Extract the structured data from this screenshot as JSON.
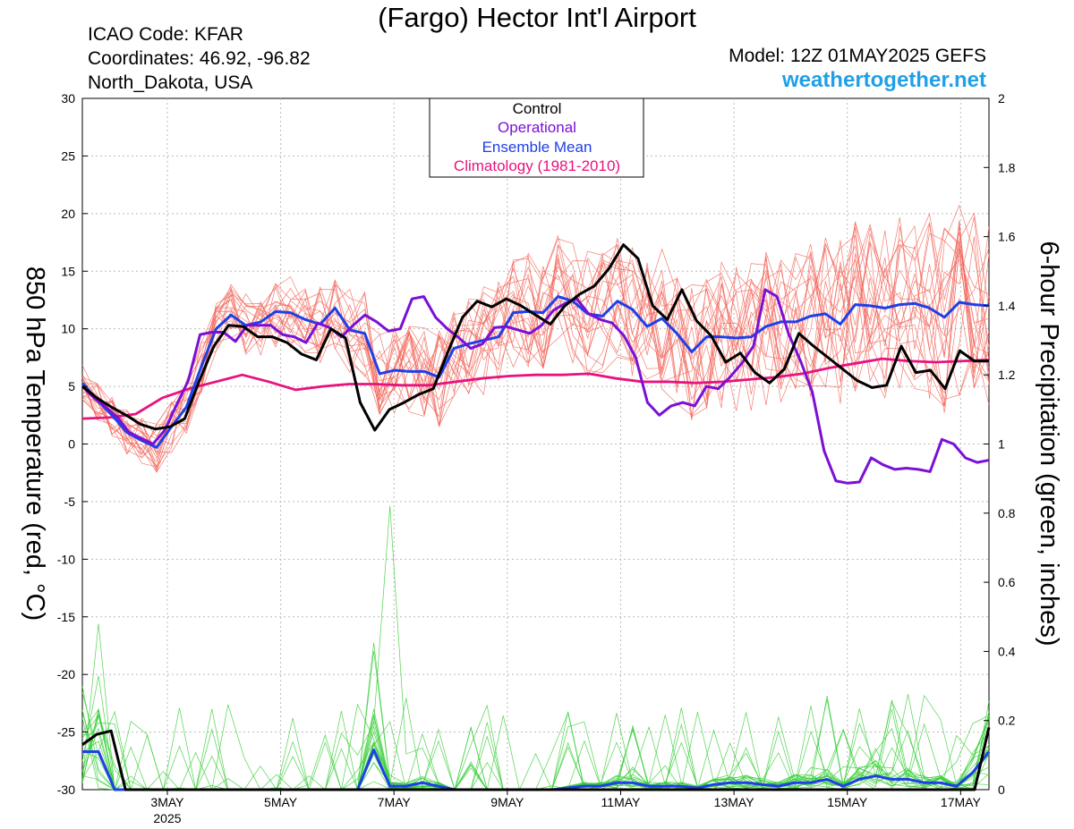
{
  "header": {
    "title": "(Fargo) Hector Int'l Airport",
    "icao": "ICAO Code: KFAR",
    "coords": "Coordinates: 46.92, -96.82",
    "region": "North_Dakota, USA",
    "model": "Model: 12Z 01MAY2025 GEFS",
    "site": "weathertogether.net"
  },
  "colors": {
    "members": "#f2675c",
    "precip": "#33cc33",
    "control": "#000000",
    "operational": "#7a10d6",
    "mean": "#1f3fe8",
    "climo": "#e8127f",
    "site": "#1fa0e8"
  },
  "chart_data": {
    "type": "line",
    "title": "(Fargo) Hector Int'l Airport",
    "ylabel": "850 hPa Temperature (red, °C)",
    "y2label": "6-hour Precipitation (green, inches)",
    "ylim": [
      -30,
      30
    ],
    "y2lim": [
      0,
      2
    ],
    "yticks": [
      30,
      25,
      20,
      15,
      10,
      5,
      0,
      -5,
      -10,
      -15,
      -20,
      -25,
      -30
    ],
    "y2ticks": [
      2,
      1.8,
      1.6,
      1.4,
      1.2,
      1,
      0.8,
      0.6,
      0.4,
      0.2,
      0
    ],
    "xlim": [
      1.5,
      17.5
    ],
    "xticks": [
      {
        "x": 3,
        "label": "3MAY",
        "sub": "2025"
      },
      {
        "x": 5,
        "label": "5MAY",
        "sub": ""
      },
      {
        "x": 7,
        "label": "7MAY",
        "sub": ""
      },
      {
        "x": 9,
        "label": "9MAY",
        "sub": ""
      },
      {
        "x": 11,
        "label": "11MAY",
        "sub": ""
      },
      {
        "x": 13,
        "label": "13MAY",
        "sub": ""
      },
      {
        "x": 15,
        "label": "15MAY",
        "sub": ""
      },
      {
        "x": 17,
        "label": "17MAY",
        "sub": ""
      }
    ],
    "legend": {
      "position": "top-center",
      "entries": [
        "Control",
        "Operational",
        "Ensemble Mean",
        "Climatology (1981-2010)"
      ]
    },
    "series": [
      {
        "name": "Control",
        "axis": "temp",
        "values": [
          5,
          4,
          3.2,
          2.5,
          1.7,
          1.3,
          1.5,
          2.2,
          5.5,
          8.5,
          10.3,
          10.2,
          9.3,
          9.3,
          8.8,
          7.8,
          7.3,
          10,
          9.2,
          3.6,
          1.2,
          3,
          3.6,
          4.3,
          4.8,
          8,
          11,
          12.4,
          11.9,
          12.6,
          12,
          11.2,
          10.4,
          12,
          13,
          13.7,
          15.2,
          17.3,
          16.1,
          12,
          10.8,
          13.4,
          10.7,
          9.4,
          7.1,
          7.9,
          6.2,
          5.3,
          6.5,
          9.6,
          8.5,
          7.5,
          6.5,
          5.5,
          4.9,
          5.1,
          8.5,
          6.2,
          6.4,
          4.8,
          8.1,
          7.2,
          7.2
        ]
      },
      {
        "name": "Operational",
        "axis": "temp",
        "values": [
          5,
          4,
          3.2,
          2.3,
          1,
          0.5,
          0,
          1.2,
          3.4,
          5.5,
          9.5,
          9.7,
          9.7,
          8.9,
          10.3,
          10.3,
          10.3,
          9.5,
          9.3,
          8.8,
          10.5,
          10.1,
          9.3,
          10.3,
          11.2,
          10.6,
          9.8,
          10,
          12.6,
          12.8,
          11,
          10,
          9.2,
          8.3,
          8.7,
          10.1,
          10.2,
          9.9,
          9.6,
          10.3,
          11.6,
          12.2,
          12.6,
          11.3,
          10.8,
          10.5,
          9.4,
          7.5,
          3.6,
          2.5,
          3.3,
          3.6,
          3.3,
          5,
          4.8,
          5.8,
          7,
          8.5,
          13.4,
          12.8,
          9.5,
          7.2,
          4.5,
          -0.6,
          -3.2,
          -3.4,
          -3.3,
          -1.2,
          -1.8,
          -2.2,
          -2.1,
          -2.2,
          -2.4,
          0.4,
          0,
          -1.2,
          -1.6,
          -1.4
        ]
      },
      {
        "name": "Ensemble Mean",
        "axis": "temp",
        "values": [
          5.3,
          3.8,
          2.5,
          1,
          0.3,
          -0.3,
          1.5,
          3.2,
          6.7,
          10,
          11.2,
          10.3,
          10.6,
          11.5,
          11.4,
          10.8,
          10.4,
          11.8,
          9.9,
          9.6,
          6.1,
          6.4,
          6.3,
          6.3,
          5.8,
          8.3,
          8.7,
          9,
          9.3,
          11.4,
          11.5,
          11.4,
          12.8,
          12.4,
          11.3,
          11.1,
          12.4,
          11.7,
          10.2,
          10.9,
          9.6,
          8,
          9.3,
          9.3,
          9.2,
          9.3,
          10.2,
          10.6,
          10.6,
          11.1,
          11.3,
          10.4,
          12.1,
          12,
          11.8,
          12.1,
          12.2,
          11.8,
          11,
          12.3,
          12.1,
          12
        ]
      },
      {
        "name": "Climatology (1981-2010)",
        "axis": "temp",
        "values": [
          2.2,
          2.3,
          2.6,
          4,
          4.8,
          5.4,
          6,
          5.4,
          4.7,
          5,
          5.2,
          5.2,
          5.1,
          5.1,
          5.4,
          5.7,
          5.9,
          6,
          6,
          6.1,
          5.7,
          5.4,
          5.4,
          5.3,
          5.4,
          5.6,
          5.8,
          6.1,
          6.6,
          7,
          7.4,
          7.2,
          7.1,
          7.2,
          7.3
        ]
      },
      {
        "name": "Ensemble Mean",
        "axis": "precip",
        "values": [
          0.11,
          0.11,
          0,
          0,
          0,
          0,
          0,
          0,
          0,
          0,
          0,
          0,
          0,
          0,
          0,
          0,
          0,
          0,
          0.115,
          0.01,
          0.01,
          0.02,
          0.01,
          0,
          0,
          0,
          0,
          0,
          0,
          0,
          0.005,
          0.01,
          0.01,
          0.02,
          0.02,
          0.01,
          0.01,
          0.01,
          0.005,
          0.015,
          0.02,
          0.02,
          0.015,
          0.01,
          0.02,
          0.02,
          0.03,
          0.01,
          0.03,
          0.04,
          0.03,
          0.03,
          0.02,
          0.02,
          0.01,
          0.05,
          0.11
        ]
      },
      {
        "name": "Control",
        "axis": "precip",
        "values": [
          0.13,
          0.16,
          0.17,
          0,
          0,
          0,
          0,
          0,
          0,
          0,
          0,
          0,
          0,
          0,
          0,
          0,
          0,
          0,
          0,
          0,
          0,
          0,
          0,
          0,
          0,
          0,
          0,
          0,
          0,
          0,
          0,
          0,
          0,
          0,
          0,
          0,
          0,
          0,
          0,
          0,
          0,
          0,
          0,
          0,
          0,
          0,
          0,
          0,
          0,
          0,
          0,
          0,
          0,
          0,
          0,
          0,
          0,
          0,
          0,
          0,
          0,
          0,
          0,
          0.18
        ]
      }
    ]
  }
}
